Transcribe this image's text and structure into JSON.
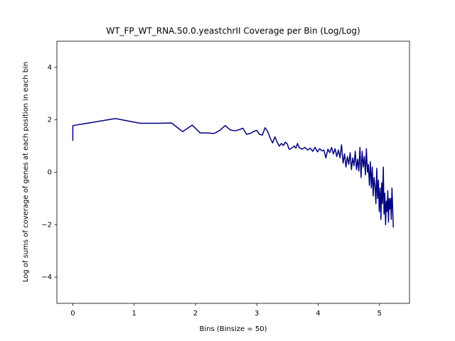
{
  "chart_data": {
    "type": "line",
    "title": "WT_FP_WT_RNA.50.0.yeastchrII Coverage per Bin (Log/Log)",
    "x_label": "Bins (Binsize = 50)",
    "y_label": "Log of sums of coverage of genes at each position in each bin",
    "xlim": [
      -0.26,
      5.49
    ],
    "ylim": [
      -5,
      5
    ],
    "xticks": [
      0,
      1,
      2,
      3,
      4,
      5
    ],
    "yticks": [
      {
        "value": -4,
        "label": "−4"
      },
      {
        "value": -2,
        "label": "−2"
      },
      0,
      2,
      4
    ],
    "grid": false,
    "series": [
      {
        "color": "#000080",
        "x": [
          0,
          0,
          0.693,
          1.099,
          1.386,
          1.609,
          1.792,
          1.946,
          2.079,
          2.197,
          2.303,
          2.398,
          2.485,
          2.565,
          2.639,
          2.708,
          2.773,
          2.833,
          2.89,
          2.944,
          2.996,
          3.045,
          3.091,
          3.135,
          3.178,
          3.219,
          3.258,
          3.296,
          3.332,
          3.367,
          3.401,
          3.434,
          3.466,
          3.497,
          3.526,
          3.555,
          3.584,
          3.611,
          3.638,
          3.664,
          3.689,
          3.738,
          3.784,
          3.829,
          3.871,
          3.912,
          3.951,
          3.989,
          4.025,
          4.06,
          4.094,
          4.127,
          4.159,
          4.19,
          4.22,
          4.248,
          4.277,
          4.304,
          4.331,
          4.357,
          4.382,
          4.407,
          4.431,
          4.454,
          4.477,
          4.5,
          4.522,
          4.543,
          4.564,
          4.585,
          4.605,
          4.625,
          4.644,
          4.663,
          4.682,
          4.7,
          4.718,
          4.736,
          4.754,
          4.771,
          4.787,
          4.804,
          4.82,
          4.836,
          4.852,
          4.868,
          4.883,
          4.898,
          4.913,
          4.927,
          4.942,
          4.956,
          4.97,
          4.984,
          4.997,
          5.011,
          5.024,
          5.037,
          5.05,
          5.063,
          5.075,
          5.088,
          5.1,
          5.112,
          5.124,
          5.136,
          5.147,
          5.159,
          5.17,
          5.182,
          5.193,
          5.204,
          5.215,
          5.226
        ],
        "values": [
          1.2,
          1.78,
          2.05,
          1.87,
          1.87,
          1.88,
          1.55,
          1.8,
          1.5,
          1.5,
          1.48,
          1.6,
          1.78,
          1.62,
          1.58,
          1.62,
          1.68,
          1.45,
          1.48,
          1.55,
          1.6,
          1.45,
          1.42,
          1.7,
          1.55,
          1.3,
          1.12,
          1.35,
          1.15,
          1.0,
          1.1,
          1.02,
          1.15,
          1.08,
          0.88,
          0.9,
          0.95,
          1.0,
          0.92,
          1.1,
          0.95,
          0.88,
          0.95,
          0.85,
          0.92,
          0.8,
          0.95,
          0.78,
          0.9,
          0.82,
          0.85,
          0.55,
          0.88,
          0.75,
          0.95,
          0.7,
          0.9,
          0.6,
          0.85,
          0.55,
          1.05,
          0.35,
          0.7,
          0.2,
          0.6,
          0.3,
          0.75,
          0.1,
          0.55,
          0.25,
          0.8,
          0.1,
          0.5,
          0.05,
          0.95,
          -0.2,
          0.8,
          0.2,
          0.6,
          -0.1,
          0.9,
          0.0,
          0.3,
          -0.5,
          0.4,
          -0.6,
          0.2,
          -0.9,
          -0.2,
          -0.5,
          -1.2,
          0.15,
          -1.0,
          -0.3,
          -1.5,
          -0.6,
          -1.8,
          -0.4,
          -1.2,
          0.2,
          -1.6,
          -0.8,
          -2.0,
          -1.1,
          -1.5,
          -0.7,
          -1.9,
          -1.0,
          -1.4,
          -1.0,
          -1.8,
          -0.6,
          -1.3,
          -2.1
        ]
      }
    ]
  }
}
